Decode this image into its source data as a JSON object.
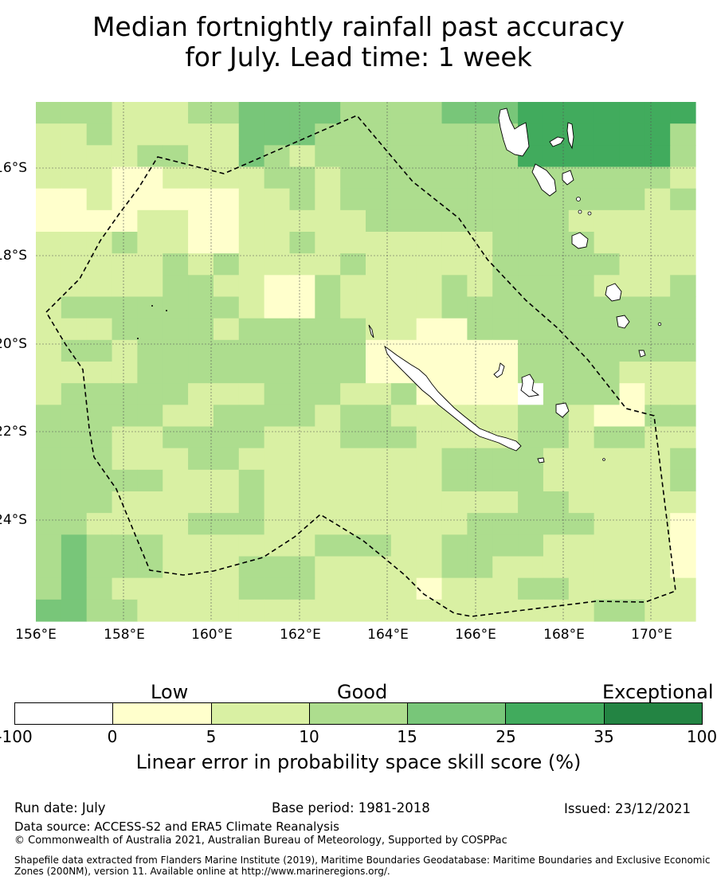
{
  "title": {
    "line1": "Median fortnightly rainfall past accuracy",
    "line2": "for July. Lead time: 1 week"
  },
  "map": {
    "lat_labels": [
      "16°S",
      "18°S",
      "20°S",
      "22°S",
      "24°S"
    ],
    "lon_labels": [
      "156°E",
      "158°E",
      "160°E",
      "162°E",
      "164°E",
      "166°E",
      "168°E",
      "170°E"
    ],
    "category_colors": [
      "#ffffff",
      "#ffffcc",
      "#d9f0a3",
      "#addd8e",
      "#78c679",
      "#41ab5d",
      "#238443"
    ],
    "grid_rows": [
      "33322233444433334445555555",
      "22322222444333333335555553",
      "22223322432333333335555553",
      "22211222233233333333333332",
      "11211111223233333333333323",
      "11112211222223333333322222",
      "22232211223222222233332222",
      "22222323222232222233333222",
      "22222332211322223233332223",
      "23333333211322223333333333",
      "22233332333332211333333333",
      "23323333333331111113333333",
      "22223333333331111113333222",
      "23333322233322311110333122",
      "33333223333233222223321133",
      "33322333322233322223323322",
      "33322233222222223333222223",
      "33333222322222223333222223",
      "33322222322222222223322222",
      "33222233322222222333332221",
      "34333222222333223333222221",
      "34333222333222223322222221",
      "34322222333222212223322222",
      "44332222222222222222223322"
    ],
    "zone_boundary_name": "Exclusive Economic Zone (200NM) boundary",
    "land_masses": [
      "New Caledonia",
      "Loyalty Islands",
      "Vanuatu",
      "Chesterfield Islands"
    ]
  },
  "legend": {
    "low": "Low",
    "good": "Good",
    "exceptional": "Exceptional",
    "ticks": [
      "-100",
      "0",
      "5",
      "10",
      "15",
      "25",
      "35",
      "100"
    ],
    "title": "Linear error in probability space skill score (%)"
  },
  "footer": {
    "run_date": "Run date: July",
    "base_period": "Base period: 1981-2018",
    "issued": "Issued: 23/12/2021",
    "data_source": "Data source: ACCESS-S2 and ERA5 Climate Reanalysis",
    "copyright": "© Commonwealth of Australia 2021, Australian Bureau of Meteorology, Supported by COSPPac",
    "shapefile": "Shapefile data extracted from Flanders Marine Institute (2019), Maritime Boundaries Geodatabase: Maritime Boundaries and Exclusive Economic Zones (200NM), version 11. Available online at http://www.marineregions.org/."
  }
}
